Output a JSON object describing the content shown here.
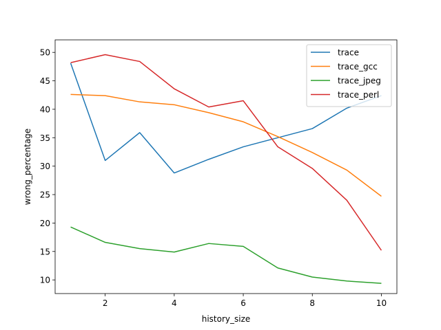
{
  "chart_data": {
    "type": "line",
    "xlabel": "history_size",
    "ylabel": "wrong_percentage",
    "x": [
      1,
      2,
      3,
      4,
      5,
      6,
      7,
      8,
      9,
      10
    ],
    "xlim": [
      0.55,
      10.45
    ],
    "ylim": [
      7.6,
      52.2
    ],
    "xticks": [
      2,
      4,
      6,
      8,
      10
    ],
    "yticks": [
      10,
      15,
      20,
      25,
      30,
      35,
      40,
      45,
      50
    ],
    "grid": false,
    "legend_position": "top-right",
    "series": [
      {
        "name": "trace",
        "color": "#1f77b4",
        "values": [
          48.1,
          31.0,
          35.9,
          28.8,
          31.2,
          33.4,
          35.0,
          36.6,
          40.2,
          42.4
        ]
      },
      {
        "name": "trace_gcc",
        "color": "#ff7f0e",
        "values": [
          42.6,
          42.4,
          41.3,
          40.8,
          39.4,
          37.8,
          35.2,
          32.4,
          29.3,
          24.7
        ]
      },
      {
        "name": "trace_jpeg",
        "color": "#2ca02c",
        "values": [
          19.3,
          16.6,
          15.5,
          14.9,
          16.4,
          15.9,
          12.1,
          10.5,
          9.8,
          9.4
        ]
      },
      {
        "name": "trace_perl",
        "color": "#d62728",
        "values": [
          48.2,
          49.6,
          48.4,
          43.6,
          40.4,
          41.5,
          33.4,
          29.6,
          24.0,
          15.2
        ]
      }
    ]
  }
}
